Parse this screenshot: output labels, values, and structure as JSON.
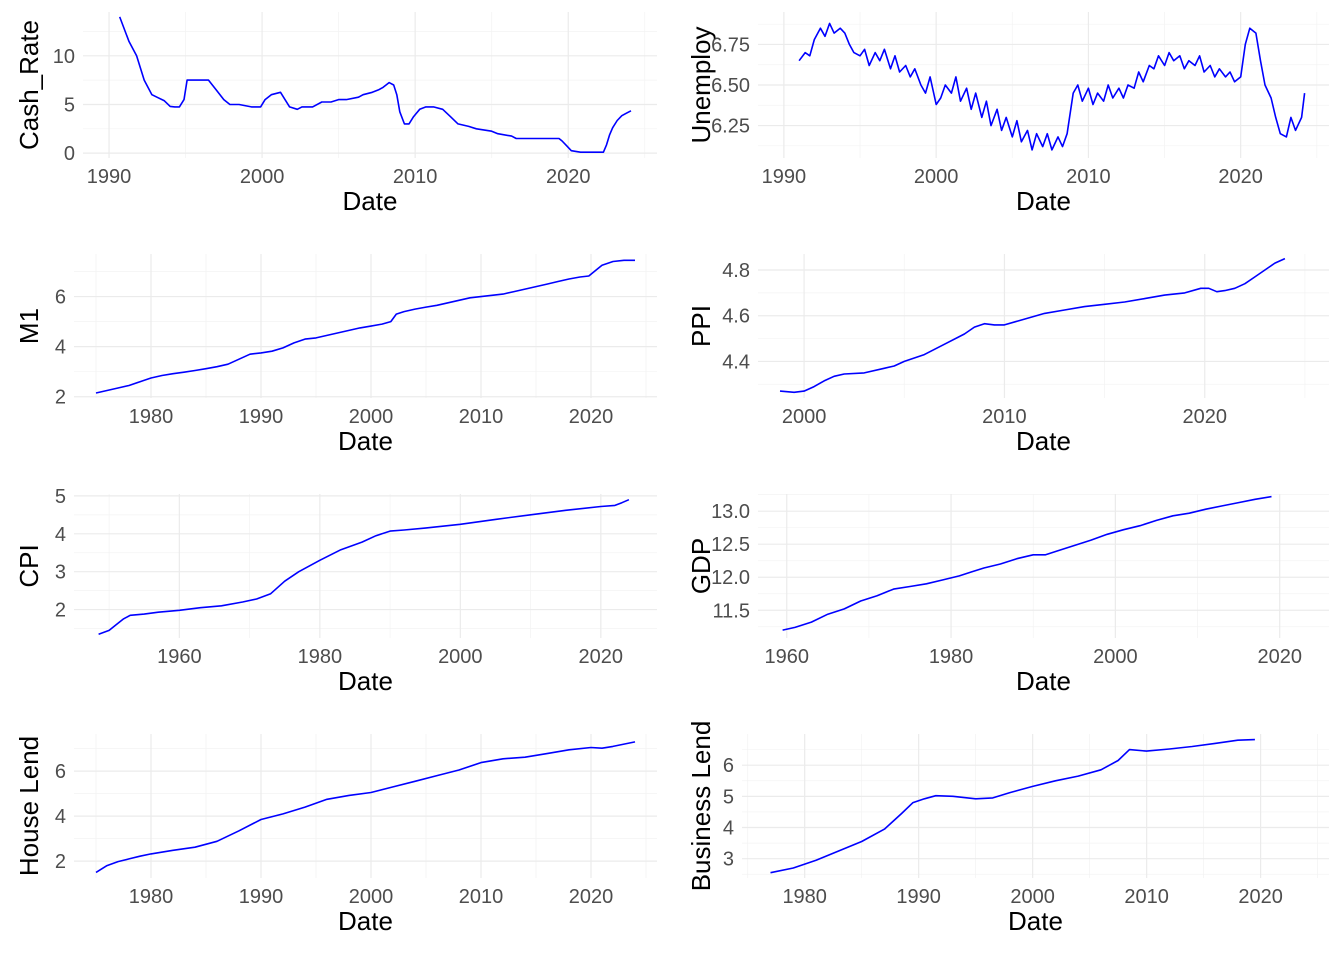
{
  "chart_data": [
    {
      "id": "cash-rate",
      "type": "line",
      "title": "",
      "xlabel": "Date",
      "ylabel": "Cash_Rate",
      "xlim": [
        1988.3,
        2025.8
      ],
      "ylim": [
        -0.5,
        14.5
      ],
      "xticks": [
        1990,
        2000,
        2010,
        2020
      ],
      "yticks": [
        0,
        5,
        10
      ],
      "xticklabels": [
        "1990",
        "2000",
        "2010",
        "2020"
      ],
      "yticklabels": [
        "0",
        "5",
        "10"
      ],
      "grid": true,
      "line_color": "#0000ff",
      "series": [
        {
          "x": [
            1990.7,
            1991.3,
            1991.8,
            1992.3,
            1992.8,
            1993.2,
            1993.6,
            1994.0,
            1994.3,
            1994.6,
            1994.9,
            1995.1,
            1996.0,
            1996.5,
            1997.0,
            1997.5,
            1997.9,
            1998.5,
            1999.3,
            1999.9,
            2000.2,
            2000.6,
            2001.2,
            2001.5,
            2001.8,
            2002.3,
            2002.6,
            2003.3,
            2003.9,
            2004.5,
            2005.0,
            2005.5,
            2006.3,
            2006.6,
            2007.2,
            2007.6,
            2007.9,
            2008.3,
            2008.6,
            2008.8,
            2009.0,
            2009.3,
            2009.6,
            2009.9,
            2010.3,
            2010.7,
            2011.2,
            2011.8,
            2012.3,
            2012.8,
            2013.5,
            2014.0,
            2015.0,
            2015.4,
            2016.3,
            2016.6,
            2019.4,
            2019.6,
            2019.9,
            2020.2,
            2020.8,
            2022.3,
            2022.5,
            2022.7,
            2022.9,
            2023.2,
            2023.5,
            2023.8,
            2024.1
          ],
          "y": [
            14.0,
            11.5,
            10.0,
            7.5,
            6.0,
            5.7,
            5.4,
            4.8,
            4.75,
            4.75,
            5.5,
            7.5,
            7.5,
            7.5,
            6.5,
            5.5,
            5.0,
            5.0,
            4.75,
            4.75,
            5.5,
            6.0,
            6.25,
            5.5,
            4.75,
            4.5,
            4.75,
            4.75,
            5.25,
            5.25,
            5.5,
            5.5,
            5.75,
            6.0,
            6.25,
            6.5,
            6.75,
            7.25,
            7.0,
            6.0,
            4.25,
            3.0,
            3.0,
            3.75,
            4.5,
            4.75,
            4.75,
            4.5,
            3.75,
            3.0,
            2.75,
            2.5,
            2.25,
            2.0,
            1.75,
            1.5,
            1.5,
            1.25,
            0.75,
            0.25,
            0.1,
            0.1,
            0.85,
            1.85,
            2.6,
            3.35,
            3.85,
            4.1,
            4.35
          ]
        }
      ]
    },
    {
      "id": "unemploy",
      "type": "line",
      "title": "",
      "xlabel": "Date",
      "ylabel": "Unemploy",
      "xlim": [
        1988.3,
        2025.8
      ],
      "ylim": [
        6.05,
        6.95
      ],
      "xticks": [
        1990,
        2000,
        2010,
        2020
      ],
      "yticks": [
        6.25,
        6.5,
        6.75
      ],
      "xticklabels": [
        "1990",
        "2000",
        "2010",
        "2020"
      ],
      "yticklabels": [
        "6.25",
        "6.50",
        "6.75"
      ],
      "grid": true,
      "line_color": "#0000ff",
      "series": [
        {
          "x": [
            1991.0,
            1991.4,
            1991.7,
            1992.0,
            1992.4,
            1992.7,
            1993.0,
            1993.3,
            1993.7,
            1994.0,
            1994.3,
            1994.6,
            1995.0,
            1995.3,
            1995.6,
            1996.0,
            1996.3,
            1996.6,
            1997.0,
            1997.3,
            1997.6,
            1998.0,
            1998.3,
            1998.6,
            1999.0,
            1999.3,
            1999.6,
            2000.0,
            2000.3,
            2000.6,
            2001.0,
            2001.3,
            2001.6,
            2002.0,
            2002.3,
            2002.6,
            2003.0,
            2003.3,
            2003.6,
            2004.0,
            2004.3,
            2004.6,
            2005.0,
            2005.3,
            2005.6,
            2006.0,
            2006.3,
            2006.6,
            2007.0,
            2007.3,
            2007.6,
            2008.0,
            2008.3,
            2008.6,
            2009.0,
            2009.3,
            2009.6,
            2010.0,
            2010.3,
            2010.6,
            2011.0,
            2011.3,
            2011.6,
            2012.0,
            2012.3,
            2012.6,
            2013.0,
            2013.3,
            2013.6,
            2014.0,
            2014.3,
            2014.6,
            2015.0,
            2015.3,
            2015.6,
            2016.0,
            2016.3,
            2016.6,
            2017.0,
            2017.3,
            2017.6,
            2018.0,
            2018.3,
            2018.6,
            2019.0,
            2019.3,
            2019.6,
            2020.0,
            2020.3,
            2020.6,
            2021.0,
            2021.3,
            2021.6,
            2022.0,
            2022.3,
            2022.6,
            2023.0,
            2023.3,
            2023.6,
            2024.0,
            2024.2
          ],
          "y": [
            6.65,
            6.7,
            6.68,
            6.78,
            6.85,
            6.8,
            6.88,
            6.82,
            6.85,
            6.82,
            6.75,
            6.7,
            6.68,
            6.72,
            6.62,
            6.7,
            6.65,
            6.72,
            6.6,
            6.68,
            6.58,
            6.62,
            6.55,
            6.6,
            6.5,
            6.45,
            6.55,
            6.38,
            6.42,
            6.5,
            6.45,
            6.55,
            6.4,
            6.48,
            6.35,
            6.45,
            6.3,
            6.4,
            6.25,
            6.35,
            6.22,
            6.3,
            6.18,
            6.28,
            6.15,
            6.22,
            6.1,
            6.2,
            6.12,
            6.2,
            6.1,
            6.18,
            6.12,
            6.2,
            6.45,
            6.5,
            6.4,
            6.48,
            6.38,
            6.45,
            6.4,
            6.5,
            6.42,
            6.48,
            6.42,
            6.5,
            6.48,
            6.58,
            6.52,
            6.62,
            6.6,
            6.68,
            6.62,
            6.7,
            6.65,
            6.68,
            6.6,
            6.65,
            6.62,
            6.68,
            6.58,
            6.62,
            6.55,
            6.6,
            6.55,
            6.58,
            6.52,
            6.55,
            6.75,
            6.85,
            6.82,
            6.65,
            6.5,
            6.42,
            6.3,
            6.2,
            6.18,
            6.3,
            6.22,
            6.3,
            6.45
          ]
        }
      ]
    },
    {
      "id": "m1",
      "type": "line",
      "title": "",
      "xlabel": "Date",
      "ylabel": "M1",
      "xlim": [
        1973.0,
        2026.0
      ],
      "ylim": [
        1.95,
        7.7
      ],
      "xticks": [
        1980,
        1990,
        2000,
        2010,
        2020
      ],
      "yticks": [
        2,
        4,
        6
      ],
      "xticklabels": [
        "1980",
        "1990",
        "2000",
        "2010",
        "2020"
      ],
      "yticklabels": [
        "2",
        "4",
        "6"
      ],
      "grid": true,
      "line_color": "#0000ff",
      "series": [
        {
          "x": [
            1975.0,
            1976.0,
            1977.0,
            1978.0,
            1979.0,
            1980.0,
            1981.0,
            1982.0,
            1983.0,
            1984.0,
            1985.0,
            1986.0,
            1987.0,
            1988.0,
            1989.0,
            1990.0,
            1991.0,
            1992.0,
            1993.0,
            1994.0,
            1995.0,
            1996.0,
            1997.0,
            1998.0,
            1999.0,
            2000.0,
            2001.0,
            2001.8,
            2002.3,
            2003.0,
            2004.0,
            2005.0,
            2006.0,
            2007.0,
            2008.0,
            2009.0,
            2010.0,
            2011.0,
            2012.0,
            2013.0,
            2014.0,
            2015.0,
            2016.0,
            2017.0,
            2018.0,
            2019.0,
            2019.8,
            2020.3,
            2021.0,
            2022.0,
            2023.0,
            2024.0
          ],
          "y": [
            2.15,
            2.25,
            2.35,
            2.45,
            2.6,
            2.75,
            2.85,
            2.92,
            2.98,
            3.05,
            3.12,
            3.2,
            3.3,
            3.5,
            3.7,
            3.75,
            3.82,
            3.95,
            4.15,
            4.3,
            4.35,
            4.45,
            4.55,
            4.65,
            4.75,
            4.82,
            4.9,
            5.0,
            5.3,
            5.4,
            5.5,
            5.58,
            5.65,
            5.75,
            5.85,
            5.95,
            6.0,
            6.05,
            6.1,
            6.2,
            6.3,
            6.4,
            6.5,
            6.6,
            6.7,
            6.78,
            6.82,
            7.0,
            7.25,
            7.4,
            7.45,
            7.45
          ]
        }
      ]
    },
    {
      "id": "ppi",
      "type": "line",
      "title": "",
      "xlabel": "Date",
      "ylabel": "PPI",
      "xlim": [
        1997.7,
        2026.2
      ],
      "ylim": [
        4.24,
        4.87
      ],
      "xticks": [
        2000,
        2010,
        2020
      ],
      "yticks": [
        4.4,
        4.6,
        4.8
      ],
      "xticklabels": [
        "2000",
        "2010",
        "2020"
      ],
      "yticklabels": [
        "4.4",
        "4.6",
        "4.8"
      ],
      "grid": true,
      "line_color": "#0000ff",
      "series": [
        {
          "x": [
            1998.8,
            1999.5,
            2000.0,
            2000.5,
            2001.0,
            2001.5,
            2002.0,
            2003.0,
            2004.0,
            2004.5,
            2005.0,
            2006.0,
            2007.0,
            2008.0,
            2008.5,
            2009.0,
            2009.5,
            2010.0,
            2011.0,
            2012.0,
            2013.0,
            2014.0,
            2015.0,
            2016.0,
            2017.0,
            2018.0,
            2019.0,
            2019.8,
            2020.2,
            2020.6,
            2021.0,
            2021.5,
            2022.0,
            2022.5,
            2023.0,
            2023.5,
            2024.0
          ],
          "y": [
            4.27,
            4.265,
            4.27,
            4.29,
            4.315,
            4.335,
            4.345,
            4.35,
            4.37,
            4.38,
            4.4,
            4.43,
            4.475,
            4.52,
            4.55,
            4.565,
            4.56,
            4.56,
            4.585,
            4.61,
            4.625,
            4.64,
            4.65,
            4.66,
            4.675,
            4.69,
            4.7,
            4.72,
            4.72,
            4.705,
            4.71,
            4.72,
            4.74,
            4.77,
            4.8,
            4.83,
            4.85
          ]
        }
      ]
    },
    {
      "id": "cpi",
      "type": "line",
      "title": "",
      "xlabel": "Date",
      "ylabel": "CPI",
      "xlim": [
        1945.0,
        2028.0
      ],
      "ylim": [
        1.25,
        5.05
      ],
      "xticks": [
        1960,
        1980,
        2000,
        2020
      ],
      "yticks": [
        2,
        3,
        4,
        5
      ],
      "xticklabels": [
        "1960",
        "1980",
        "2000",
        "2020"
      ],
      "yticklabels": [
        "2",
        "3",
        "4",
        "5"
      ],
      "grid": true,
      "line_color": "#0000ff",
      "series": [
        {
          "x": [
            1948.5,
            1950.0,
            1951.0,
            1952.0,
            1953.0,
            1955.0,
            1957.0,
            1960.0,
            1963.0,
            1966.0,
            1969.0,
            1971.0,
            1973.0,
            1975.0,
            1977.0,
            1980.0,
            1983.0,
            1986.0,
            1988.0,
            1990.0,
            1992.0,
            1995.0,
            2000.0,
            2005.0,
            2010.0,
            2015.0,
            2020.0,
            2022.0,
            2023.0,
            2024.0
          ],
          "y": [
            1.35,
            1.45,
            1.6,
            1.75,
            1.85,
            1.88,
            1.93,
            1.98,
            2.05,
            2.1,
            2.2,
            2.28,
            2.42,
            2.75,
            3.0,
            3.3,
            3.58,
            3.78,
            3.95,
            4.07,
            4.1,
            4.15,
            4.25,
            4.38,
            4.5,
            4.62,
            4.72,
            4.75,
            4.82,
            4.9
          ]
        }
      ]
    },
    {
      "id": "gdp",
      "type": "line",
      "title": "",
      "xlabel": "Date",
      "ylabel": "GDP",
      "xlim": [
        1956.5,
        2026.0
      ],
      "ylim": [
        11.08,
        13.26
      ],
      "xticks": [
        1960,
        1980,
        2000,
        2020
      ],
      "yticks": [
        11.5,
        12.0,
        12.5,
        13.0
      ],
      "xticklabels": [
        "1960",
        "1980",
        "2000",
        "2020"
      ],
      "yticklabels": [
        "11.5",
        "12.0",
        "12.5",
        "13.0"
      ],
      "grid": true,
      "line_color": "#0000ff",
      "series": [
        {
          "x": [
            1959.5,
            1961.0,
            1963.0,
            1965.0,
            1967.0,
            1969.0,
            1971.0,
            1973.0,
            1975.0,
            1977.0,
            1979.0,
            1981.0,
            1982.5,
            1984.0,
            1986.0,
            1988.0,
            1990.0,
            1991.5,
            1993.0,
            1995.0,
            1997.0,
            1999.0,
            2001.0,
            2003.0,
            2005.0,
            2007.0,
            2009.0,
            2011.0,
            2013.0,
            2015.0,
            2017.0,
            2019.0
          ],
          "y": [
            11.2,
            11.24,
            11.32,
            11.44,
            11.52,
            11.64,
            11.72,
            11.82,
            11.86,
            11.9,
            11.96,
            12.02,
            12.08,
            12.14,
            12.2,
            12.28,
            12.34,
            12.34,
            12.4,
            12.48,
            12.56,
            12.65,
            12.72,
            12.78,
            12.86,
            12.93,
            12.97,
            13.03,
            13.08,
            13.13,
            13.18,
            13.22
          ]
        }
      ]
    },
    {
      "id": "house-lend",
      "type": "line",
      "title": "",
      "xlabel": "Date",
      "ylabel": "House Lend",
      "xlim": [
        1973.0,
        2026.0
      ],
      "ylim": [
        1.25,
        7.65
      ],
      "xticks": [
        1980,
        1990,
        2000,
        2010,
        2020
      ],
      "yticks": [
        2,
        4,
        6
      ],
      "xticklabels": [
        "1980",
        "1990",
        "2000",
        "2010",
        "2020"
      ],
      "yticklabels": [
        "2",
        "4",
        "6"
      ],
      "grid": true,
      "line_color": "#0000ff",
      "series": [
        {
          "x": [
            1975.0,
            1976.0,
            1977.0,
            1978.0,
            1979.0,
            1980.0,
            1982.0,
            1984.0,
            1986.0,
            1988.0,
            1990.0,
            1992.0,
            1994.0,
            1996.0,
            1998.0,
            2000.0,
            2002.0,
            2004.0,
            2006.0,
            2008.0,
            2010.0,
            2012.0,
            2014.0,
            2016.0,
            2018.0,
            2020.0,
            2021.0,
            2022.0,
            2024.0
          ],
          "y": [
            1.5,
            1.8,
            1.98,
            2.1,
            2.22,
            2.32,
            2.48,
            2.62,
            2.88,
            3.35,
            3.85,
            4.1,
            4.4,
            4.75,
            4.92,
            5.05,
            5.3,
            5.55,
            5.8,
            6.05,
            6.38,
            6.55,
            6.62,
            6.78,
            6.95,
            7.05,
            7.02,
            7.1,
            7.3
          ]
        }
      ]
    },
    {
      "id": "business-lend",
      "type": "line",
      "title": "",
      "xlabel": "Date",
      "ylabel": "Business Lend",
      "xlim": [
        1974.5,
        2026.0
      ],
      "ylim": [
        2.38,
        7.0
      ],
      "xticks": [
        1980,
        1990,
        2000,
        2010,
        2020
      ],
      "yticks": [
        3,
        4,
        5,
        6
      ],
      "xticklabels": [
        "1980",
        "1990",
        "2000",
        "2010",
        "2020"
      ],
      "yticklabels": [
        "3",
        "4",
        "5",
        "6"
      ],
      "grid": true,
      "line_color": "#0000ff",
      "series": [
        {
          "x": [
            1977.0,
            1979.0,
            1981.0,
            1983.0,
            1985.0,
            1987.0,
            1988.5,
            1989.5,
            1990.5,
            1991.5,
            1993.0,
            1995.0,
            1996.5,
            1998.0,
            2000.0,
            2002.0,
            2004.0,
            2006.0,
            2007.5,
            2008.5,
            2010.0,
            2012.0,
            2014.0,
            2016.0,
            2018.0,
            2019.5
          ],
          "y": [
            2.55,
            2.7,
            2.95,
            3.25,
            3.55,
            3.95,
            4.45,
            4.8,
            4.92,
            5.02,
            5.0,
            4.92,
            4.95,
            5.12,
            5.32,
            5.5,
            5.65,
            5.85,
            6.15,
            6.5,
            6.45,
            6.52,
            6.6,
            6.7,
            6.8,
            6.82
          ]
        }
      ]
    }
  ]
}
